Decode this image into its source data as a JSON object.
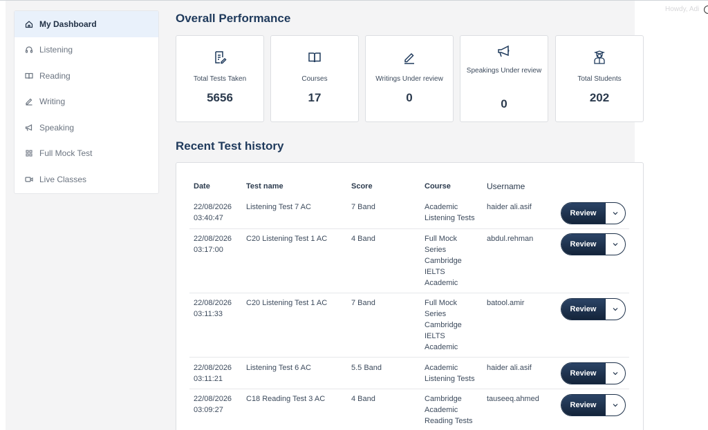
{
  "howdy": "Howdy, Adi",
  "sidebar": {
    "items": [
      {
        "label": "My Dashboard",
        "icon": "home-icon",
        "active": true
      },
      {
        "label": "Listening",
        "icon": "headphones-icon"
      },
      {
        "label": "Reading",
        "icon": "book-icon"
      },
      {
        "label": "Writing",
        "icon": "pen-icon"
      },
      {
        "label": "Speaking",
        "icon": "megaphone-icon"
      },
      {
        "label": "Full Mock Test",
        "icon": "grid-icon"
      },
      {
        "label": "Live Classes",
        "icon": "video-icon"
      }
    ]
  },
  "overview": {
    "title": "Overall Performance",
    "cards": [
      {
        "label": "Total Tests Taken",
        "value": "5656",
        "icon": "document-edit-icon"
      },
      {
        "label": "Courses",
        "value": "17",
        "icon": "book-icon"
      },
      {
        "label": "Writings Under review",
        "value": "0",
        "icon": "pen-icon"
      },
      {
        "label": "Speakings Under review",
        "value": "0",
        "icon": "megaphone-icon"
      },
      {
        "label": "Total Students",
        "value": "202",
        "icon": "student-icon"
      }
    ]
  },
  "history": {
    "title": "Recent Test history",
    "headers": {
      "date": "Date",
      "test": "Test name",
      "score": "Score",
      "course": "Course",
      "user": "Username"
    },
    "review_label": "Review",
    "rows": [
      {
        "date": "22/08/2026 03:40:47",
        "test": "Listening Test 7 AC",
        "score": "7 Band",
        "course": "Academic Listening Tests",
        "user": "haider ali.asif"
      },
      {
        "date": "22/08/2026 03:17:00",
        "test": "C20 Listening Test 1 AC",
        "score": "4 Band",
        "course": "Full Mock Series Cambridge IELTS Academic",
        "user": "abdul.rehman"
      },
      {
        "date": "22/08/2026 03:11:33",
        "test": "C20 Listening Test 1 AC",
        "score": "7 Band",
        "course": "Full Mock Series Cambridge IELTS Academic",
        "user": "batool.amir"
      },
      {
        "date": "22/08/2026 03:11:21",
        "test": "Listening Test 6 AC",
        "score": "5.5 Band",
        "course": "Academic Listening Tests",
        "user": "haider ali.asif"
      },
      {
        "date": "22/08/2026 03:09:27",
        "test": "C18 Reading Test 3 AC",
        "score": "4 Band",
        "course": "Cambridge Academic Reading Tests",
        "user": "tauseeq.ahmed"
      }
    ]
  }
}
